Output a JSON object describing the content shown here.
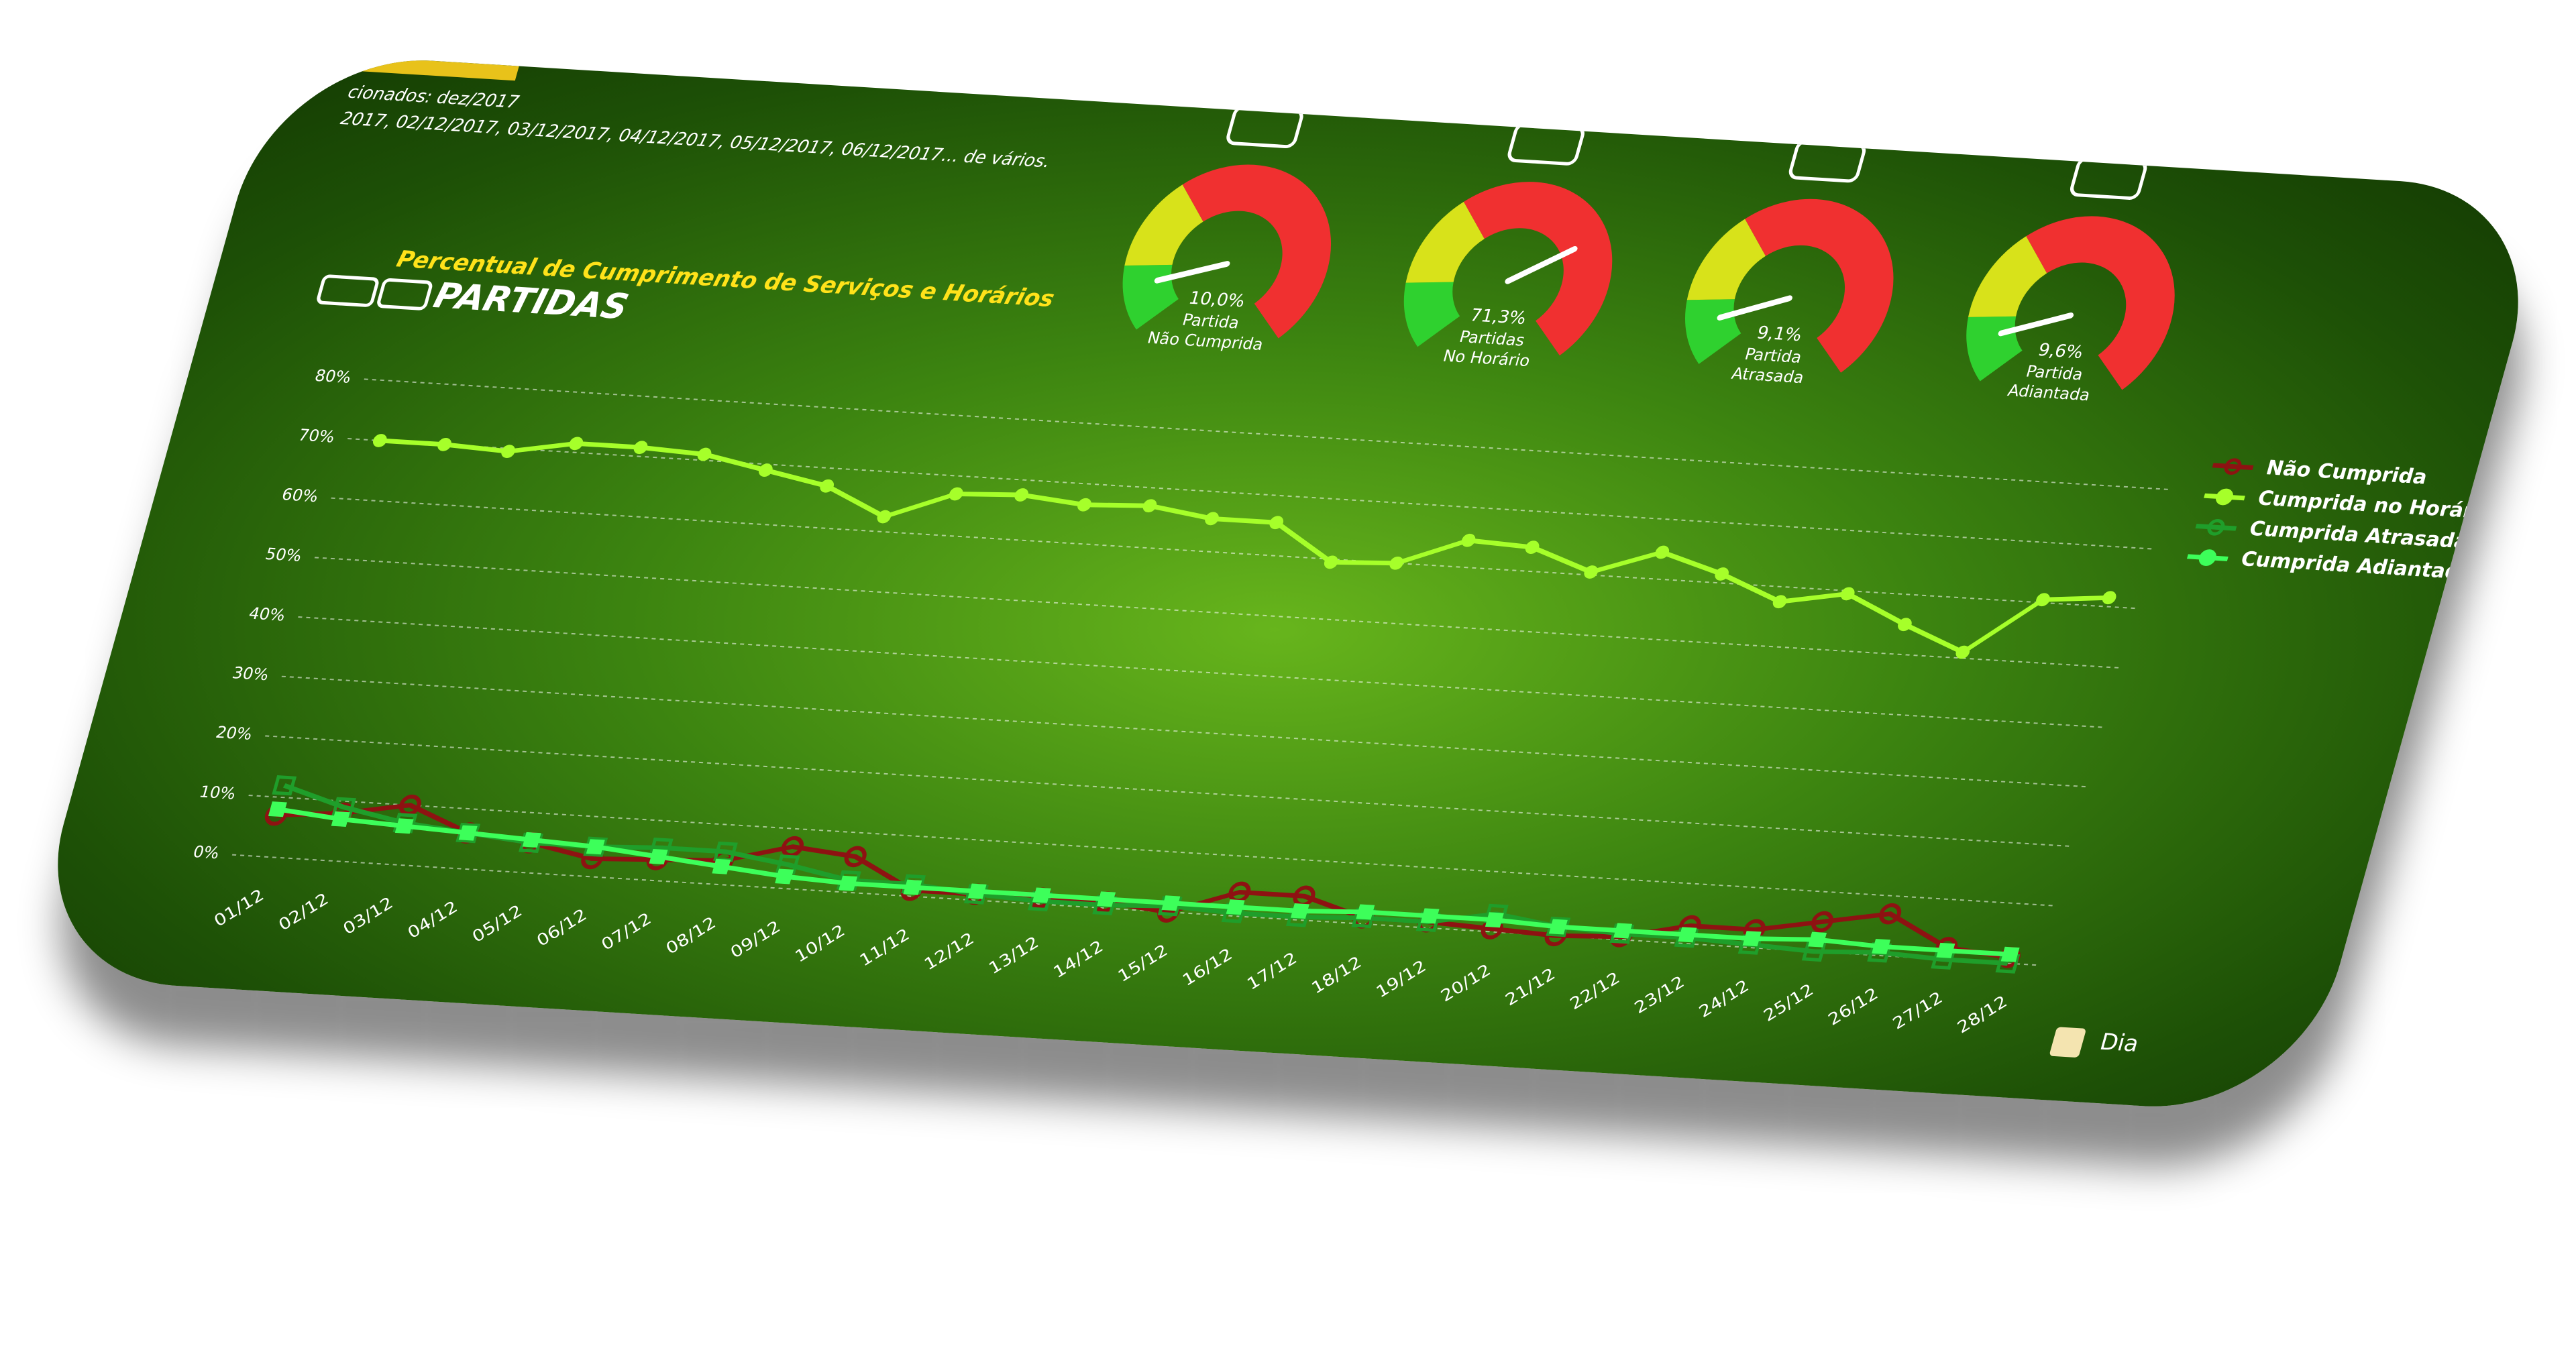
{
  "header": {
    "filter_line": "cionados: dez/2017",
    "dates_line": "2017, 02/12/2017, 03/12/2017, 04/12/2017, 05/12/2017, 06/12/2017... de vários."
  },
  "chart_data": [
    {
      "type": "line",
      "subtitle": "Percentual de Cumprimento de Serviços e Horários",
      "title": "PARTIDAS",
      "x_label": "Dia",
      "categories": [
        "01/12",
        "02/12",
        "03/12",
        "04/12",
        "05/12",
        "06/12",
        "07/12",
        "08/12",
        "09/12",
        "10/12",
        "11/12",
        "12/12",
        "13/12",
        "14/12",
        "15/12",
        "16/12",
        "17/12",
        "18/12",
        "19/12",
        "20/12",
        "21/12",
        "22/12",
        "23/12",
        "24/12",
        "25/12",
        "26/12",
        "27/12",
        "28/12"
      ],
      "series": [
        {
          "name": "Não Cumprida",
          "color": "#8e1212",
          "marker": "hollow-circle",
          "values": [
            7,
            8,
            10,
            6,
            5,
            3,
            3.5,
            4,
            7,
            6,
            1,
            1,
            1,
            1,
            0,
            4,
            4,
            1,
            1,
            0.5,
            0,
            0.5,
            3,
            3,
            5,
            7,
            2,
            1
          ]
        },
        {
          "name": "Cumprida no Horário",
          "color": "#a6ff2a",
          "marker": "dot",
          "values": [
            70,
            70,
            69.5,
            71.5,
            71.5,
            71,
            69,
            67,
            62.5,
            67,
            67.5,
            66.5,
            67,
            65.5,
            65.5,
            59.5,
            60,
            64.5,
            64,
            60.5,
            64.5,
            61.5,
            57.5,
            59.5,
            55,
            51,
            60.5,
            61.5
          ]
        },
        {
          "name": "Cumprida Atrasada",
          "color": "#1f9e2a",
          "marker": "hollow-square",
          "values": [
            12,
            9,
            7,
            6,
            5,
            5,
            5.5,
            5.5,
            4,
            2,
            2,
            1,
            0.5,
            0.5,
            1,
            0.5,
            0.5,
            1,
            1,
            3,
            1.5,
            1,
            1,
            0.5,
            0,
            0.5,
            0,
            0
          ]
        },
        {
          "name": "Cumprida Adiantada",
          "color": "#3dff5a",
          "marker": "square",
          "values": [
            8,
            7,
            6.5,
            6,
            5.5,
            5,
            4,
            3,
            2,
            1.5,
            1.5,
            1.5,
            1.5,
            1.5,
            1.5,
            1.5,
            1.5,
            2,
            2,
            2,
            1.5,
            1.5,
            1.5,
            1.5,
            2,
            1.5,
            1.5,
            1.5
          ]
        }
      ],
      "ylim": [
        0,
        80
      ],
      "yticks": [
        {
          "value": 0,
          "label": "0%"
        },
        {
          "value": 10,
          "label": "10%"
        },
        {
          "value": 20,
          "label": "20%"
        },
        {
          "value": 30,
          "label": "30%"
        },
        {
          "value": 40,
          "label": "40%"
        },
        {
          "value": 50,
          "label": "50%"
        },
        {
          "value": 60,
          "label": "60%"
        },
        {
          "value": 70,
          "label": "70%"
        },
        {
          "value": 80,
          "label": "80%"
        }
      ],
      "grid": true,
      "legend": "right"
    },
    {
      "type": "gauge",
      "value": 10.0,
      "value_label": "10,0%",
      "labels": [
        "Partida",
        "Não Cumprida"
      ],
      "ylim": [
        0,
        100
      ]
    },
    {
      "type": "gauge",
      "value": 71.3,
      "value_label": "71,3%",
      "labels": [
        "Partidas",
        "No Horário"
      ],
      "ylim": [
        0,
        100
      ]
    },
    {
      "type": "gauge",
      "value": 9.1,
      "value_label": "9,1%",
      "labels": [
        "Partida",
        "Atrasada"
      ],
      "ylim": [
        0,
        100
      ]
    },
    {
      "type": "gauge",
      "value": 9.6,
      "value_label": "9,6%",
      "labels": [
        "Partida",
        "Adiantada"
      ],
      "ylim": [
        0,
        100
      ]
    }
  ]
}
